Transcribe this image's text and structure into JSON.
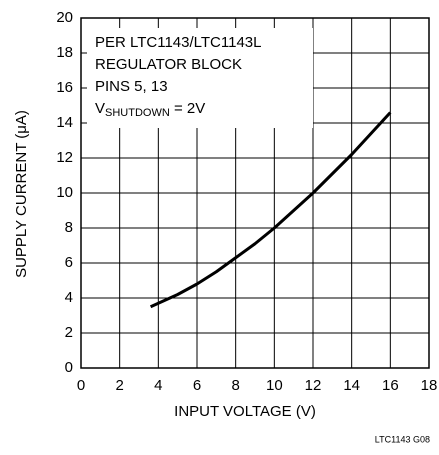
{
  "chart_data": {
    "type": "line",
    "xlabel": "INPUT VOLTAGE (V)",
    "ylabel": "SUPPLY CURRENT (μA)",
    "annotations": [
      "PER LTC1143/LTC1143L",
      "REGULATOR BLOCK",
      "PINS 5, 13"
    ],
    "annotation_sub": {
      "base": "V",
      "sub": "SHUTDOWN",
      "rest": " = 2V"
    },
    "footnote": "LTC1143 G08",
    "x": [
      3.6,
      5,
      6,
      7,
      8,
      9,
      10,
      11,
      12,
      13,
      14,
      15,
      16
    ],
    "series": [
      {
        "color": "#000000",
        "values": [
          3.5,
          4.2,
          4.8,
          5.5,
          6.3,
          7.1,
          8.0,
          9.0,
          10.0,
          11.1,
          12.2,
          13.4,
          14.6
        ]
      }
    ],
    "xlim": [
      0,
      18
    ],
    "xticks": [
      0,
      2,
      4,
      6,
      8,
      10,
      12,
      14,
      16,
      18
    ],
    "ylim": [
      0,
      20
    ],
    "yticks": [
      0,
      2,
      4,
      6,
      8,
      10,
      12,
      14,
      16,
      18,
      20
    ],
    "grid": true
  }
}
